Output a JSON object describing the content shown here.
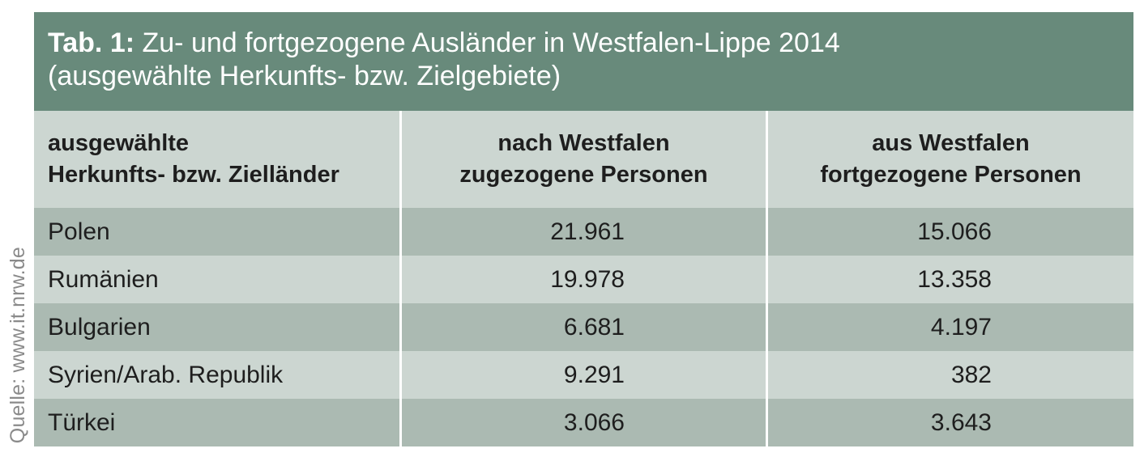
{
  "source": "Quelle: www.it.nrw.de",
  "title": {
    "prefix": "Tab. 1:",
    "line1": " Zu- und fortgezogene Ausländer in Westfalen-Lippe 2014",
    "line2": "(ausgewählte Herkunfts- bzw. Zielgebiete)"
  },
  "headers": [
    [
      "ausgewählte",
      "Herkunfts- bzw. Zielländer"
    ],
    [
      "nach Westfalen",
      "zugezogene Personen"
    ],
    [
      "aus Westfalen",
      "fortgezogene Personen"
    ]
  ],
  "rows": [
    [
      "Polen",
      "21.961",
      "15.066"
    ],
    [
      "Rumänien",
      "19.978",
      "13.358"
    ],
    [
      "Bulgarien",
      "6.681",
      "4.197"
    ],
    [
      "Syrien/Arab. Republik",
      "9.291",
      "382"
    ],
    [
      "Türkei",
      "3.066",
      "3.643"
    ]
  ],
  "colors": {
    "title_bg": "#688a7b",
    "row_dark": "#abbab2",
    "row_light": "#ccd6d1",
    "source_text": "#8a8a8a"
  },
  "chart_data": {
    "type": "table",
    "title": "Tab. 1: Zu- und fortgezogene Ausländer in Westfalen-Lippe 2014 (ausgewählte Herkunfts- bzw. Zielgebiete)",
    "columns": [
      "ausgewählte Herkunfts- bzw. Zielländer",
      "nach Westfalen zugezogene Personen",
      "aus Westfalen fortgezogene Personen"
    ],
    "categories": [
      "Polen",
      "Rumänien",
      "Bulgarien",
      "Syrien/Arab. Republik",
      "Türkei"
    ],
    "series": [
      {
        "name": "nach Westfalen zugezogene Personen",
        "values": [
          21961,
          19978,
          6681,
          9291,
          3066
        ]
      },
      {
        "name": "aus Westfalen fortgezogene Personen",
        "values": [
          15066,
          13358,
          4197,
          382,
          3643
        ]
      }
    ]
  }
}
